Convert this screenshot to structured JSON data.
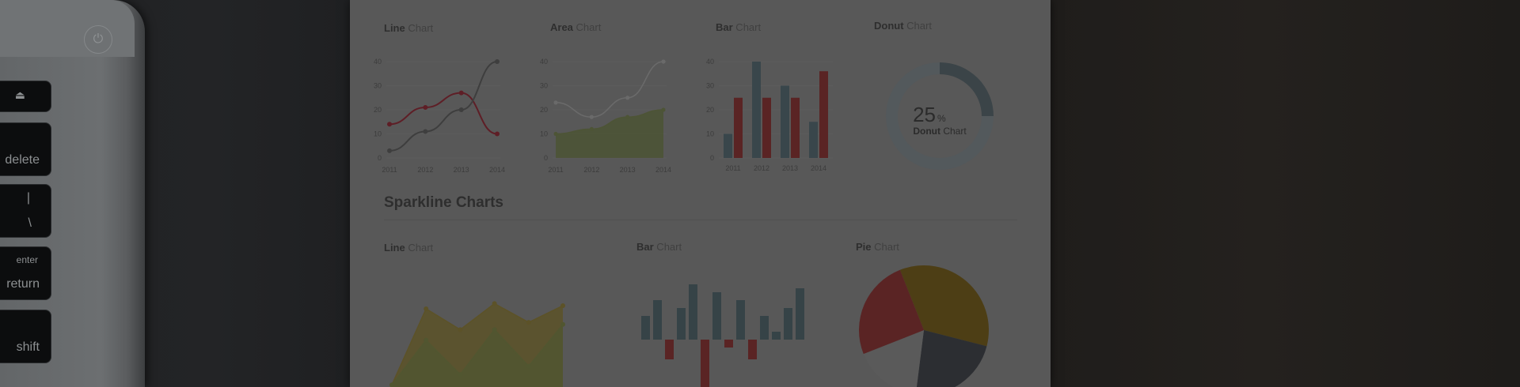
{
  "laptop": {
    "keys": {
      "eject": "⏏",
      "delete": "delete",
      "pipe_top": "|",
      "pipe_bottom": "\\",
      "enter": "enter",
      "return": "return",
      "shift": "shift"
    }
  },
  "paper": {
    "top_charts": [
      {
        "title_bold": "Line",
        "title_rest": " Chart"
      },
      {
        "title_bold": "Area",
        "title_rest": " Chart"
      },
      {
        "title_bold": "Bar",
        "title_rest": " Chart"
      },
      {
        "title_bold": "Donut",
        "title_rest": " Chart"
      }
    ],
    "section_title": "Sparkline Charts",
    "sparkline_charts": [
      {
        "title_bold": "Line",
        "title_rest": " Chart"
      },
      {
        "title_bold": "Bar",
        "title_rest": " Chart"
      },
      {
        "title_bold": "Pie",
        "title_rest": " Chart"
      }
    ],
    "donut": {
      "value": "25",
      "unit": "%",
      "label_bold": "Donut",
      "label_rest": " Chart"
    }
  },
  "chart_data": [
    {
      "type": "line",
      "x": [
        "2011",
        "2012",
        "2013",
        "2014"
      ],
      "yticks": [
        "0",
        "10",
        "20",
        "30",
        "40"
      ],
      "ylim": [
        0,
        40
      ],
      "series": [
        {
          "values": [
            14,
            21,
            27,
            10
          ],
          "color": "#5e1e26"
        },
        {
          "values": [
            3,
            11,
            20,
            40
          ],
          "color": "#3e3e3e"
        }
      ]
    },
    {
      "type": "area",
      "x": [
        "2011",
        "2012",
        "2013",
        "2014"
      ],
      "yticks": [
        "0",
        "10",
        "20",
        "30",
        "40"
      ],
      "ylim": [
        0,
        40
      ],
      "series": [
        {
          "values": [
            23,
            17,
            25,
            40
          ],
          "color": "#6a6a6a"
        },
        {
          "values": [
            10,
            12,
            17,
            20
          ],
          "color": "#4d5436"
        }
      ]
    },
    {
      "type": "bar",
      "categories": [
        "2011",
        "2012",
        "2013",
        "2014"
      ],
      "yticks": [
        "0",
        "10",
        "20",
        "30",
        "40"
      ],
      "ylim": [
        0,
        40
      ],
      "series": [
        {
          "values": [
            10,
            40,
            30,
            15
          ],
          "color": "#39464b"
        },
        {
          "values": [
            25,
            25,
            25,
            36
          ],
          "color": "#5a2424"
        }
      ]
    },
    {
      "type": "pie",
      "variant": "donut",
      "values": [
        25,
        75
      ],
      "colors": [
        "#3b4448",
        "#53595c"
      ]
    },
    {
      "type": "area",
      "variant": "sparkline",
      "series": [
        {
          "values": [
            2,
            75,
            55,
            80,
            62,
            78
          ],
          "color": "#5c5228"
        },
        {
          "values": [
            2,
            45,
            12,
            55,
            20,
            60
          ],
          "color": "#515630"
        }
      ]
    },
    {
      "type": "bar",
      "variant": "sparkline",
      "values": [
        6,
        10,
        -5,
        8,
        14,
        -12,
        12,
        -2,
        10,
        -5,
        6,
        2,
        8,
        13
      ],
      "colors": {
        "positive": "#364347",
        "negative": "#5a2424"
      }
    },
    {
      "type": "pie",
      "variant": "sparkline",
      "values": [
        35,
        23,
        17,
        25
      ],
      "colors": [
        "#4d3e15",
        "#2c2e32",
        "#5a5a5a",
        "#5a2424"
      ]
    }
  ]
}
